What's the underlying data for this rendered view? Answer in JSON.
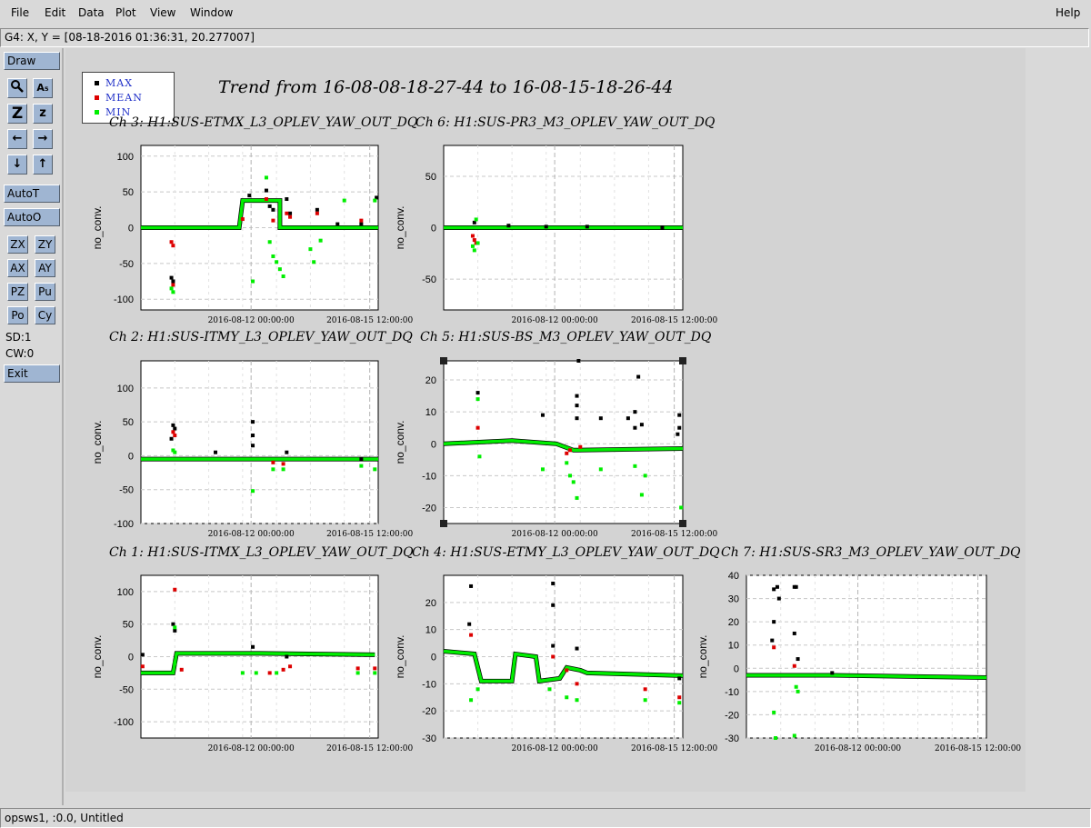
{
  "menubar": {
    "items": [
      "File",
      "Edit",
      "Data",
      "Plot",
      "View",
      "Window"
    ],
    "help": "Help"
  },
  "coord_readout": "G4: X, Y = [08-18-2016 01:36:31, 20.277007]",
  "toolbar": {
    "draw": "Draw",
    "autot": "AutoT",
    "autoo": "AutoO",
    "exit": "Exit",
    "buttons_row": [
      [
        "ZX",
        "ZY"
      ],
      [
        "AX",
        "AY"
      ],
      [
        "PZ",
        "Pu"
      ],
      [
        "Po",
        "Cy"
      ]
    ],
    "sd_label": "SD:1",
    "cw_label": "CW:0",
    "icon_labels": [
      "A₅",
      "Z",
      "z"
    ]
  },
  "legend": {
    "entries": [
      {
        "label": "MAX",
        "color": "#000000"
      },
      {
        "label": "MEAN",
        "color": "#dd0000"
      },
      {
        "label": "MIN",
        "color": "#00ee00"
      }
    ]
  },
  "trend_title": "Trend from 16-08-08-18-27-44 to 16-08-15-18-26-44",
  "ylabel": "no_conv.",
  "xtick_labels": [
    "2016-08-12 00:00:00",
    "2016-08-15 12:00:00"
  ],
  "status_text": "opsws1, :0.0, Untitled",
  "colors": {
    "max": "#000000",
    "mean": "#dd0000",
    "min": "#00ee00",
    "button": "#9fb5d2",
    "legend_text": "#2030c8"
  },
  "chart_data": [
    {
      "type": "scatter",
      "title": "Ch 3: H1:SUS-ETMX_L3_OPLEV_YAW_OUT_DQ",
      "ylabel": "no_conv.",
      "yticks": [
        100,
        50,
        0,
        -50,
        -100
      ],
      "ylim": [
        -115,
        115
      ],
      "xlim": [
        0,
        7
      ],
      "xtick_labels": [
        "2016-08-12 00:00:00",
        "2016-08-15 12:00:00"
      ],
      "xtick_pos": [
        3.25,
        6.75
      ],
      "baseline": [
        [
          0,
          0
        ],
        [
          2.9,
          0
        ],
        [
          3.0,
          38
        ],
        [
          4.1,
          38
        ],
        [
          4.1,
          0
        ],
        [
          7,
          0
        ]
      ],
      "series": [
        {
          "name": "MAX",
          "points": [
            [
              0.9,
              -70
            ],
            [
              0.95,
              -75
            ],
            [
              3.2,
              45
            ],
            [
              3.7,
              52
            ],
            [
              3.8,
              30
            ],
            [
              3.9,
              25
            ],
            [
              4.3,
              40
            ],
            [
              4.4,
              20
            ],
            [
              5.2,
              25
            ],
            [
              5.8,
              5
            ],
            [
              6.5,
              5
            ],
            [
              6.95,
              42
            ]
          ]
        },
        {
          "name": "MEAN",
          "points": [
            [
              0.9,
              -20
            ],
            [
              0.95,
              -25
            ],
            [
              0.95,
              -80
            ],
            [
              3.0,
              12
            ],
            [
              3.7,
              40
            ],
            [
              3.9,
              10
            ],
            [
              4.3,
              20
            ],
            [
              4.4,
              15
            ],
            [
              5.2,
              20
            ],
            [
              6.5,
              10
            ]
          ]
        },
        {
          "name": "MIN",
          "points": [
            [
              0.9,
              -85
            ],
            [
              0.95,
              -90
            ],
            [
              3.3,
              -75
            ],
            [
              3.7,
              70
            ],
            [
              3.8,
              -20
            ],
            [
              3.9,
              -40
            ],
            [
              4.0,
              -48
            ],
            [
              4.1,
              -58
            ],
            [
              4.2,
              -68
            ],
            [
              5.0,
              -30
            ],
            [
              5.1,
              -48
            ],
            [
              5.3,
              -18
            ],
            [
              6.0,
              38
            ],
            [
              6.9,
              38
            ]
          ]
        }
      ]
    },
    {
      "type": "scatter",
      "title": "Ch 6: H1:SUS-PR3_M3_OPLEV_YAW_OUT_DQ",
      "ylabel": "no_conv.",
      "yticks": [
        50,
        0,
        -50
      ],
      "ylim": [
        -80,
        80
      ],
      "xlim": [
        0,
        7
      ],
      "xtick_labels": [
        "2016-08-12 00:00:00",
        "2016-08-15 12:00:00"
      ],
      "xtick_pos": [
        3.25,
        6.75
      ],
      "baseline": [
        [
          0,
          0
        ],
        [
          7,
          0
        ]
      ],
      "series": [
        {
          "name": "MAX",
          "points": [
            [
              0.9,
              5
            ],
            [
              1.9,
              2
            ],
            [
              3.0,
              1
            ],
            [
              4.2,
              1
            ],
            [
              6.4,
              0
            ]
          ]
        },
        {
          "name": "MEAN",
          "points": [
            [
              0.85,
              -8
            ],
            [
              0.9,
              -12
            ],
            [
              0.95,
              -15
            ]
          ]
        },
        {
          "name": "MIN",
          "points": [
            [
              0.85,
              -18
            ],
            [
              0.9,
              -22
            ],
            [
              0.95,
              8
            ],
            [
              1.0,
              -15
            ]
          ]
        }
      ]
    },
    {
      "type": "scatter",
      "title": "Ch 2: H1:SUS-ITMY_L3_OPLEV_YAW_OUT_DQ",
      "ylabel": "no_conv.",
      "yticks": [
        100,
        50,
        0,
        -50,
        -100
      ],
      "ylim": [
        -100,
        140
      ],
      "xlim": [
        0,
        7
      ],
      "xtick_labels": [
        "2016-08-12 00:00:00",
        "2016-08-15 12:00:00"
      ],
      "xtick_pos": [
        3.25,
        6.75
      ],
      "baseline": [
        [
          0,
          -5
        ],
        [
          7,
          -5
        ]
      ],
      "series": [
        {
          "name": "MAX",
          "points": [
            [
              0.95,
              45
            ],
            [
              1.0,
              40
            ],
            [
              0.9,
              25
            ],
            [
              2.2,
              5
            ],
            [
              3.3,
              50
            ],
            [
              3.3,
              30
            ],
            [
              3.3,
              15
            ],
            [
              4.3,
              5
            ],
            [
              6.5,
              -5
            ]
          ]
        },
        {
          "name": "MEAN",
          "points": [
            [
              0.95,
              35
            ],
            [
              1.0,
              30
            ],
            [
              3.9,
              -10
            ],
            [
              4.2,
              -12
            ]
          ]
        },
        {
          "name": "MIN",
          "points": [
            [
              0.95,
              8
            ],
            [
              1.0,
              5
            ],
            [
              3.3,
              -52
            ],
            [
              3.9,
              -20
            ],
            [
              4.2,
              -20
            ],
            [
              6.5,
              -15
            ],
            [
              6.9,
              -20
            ]
          ]
        }
      ]
    },
    {
      "type": "scatter",
      "title": "Ch 5: H1:SUS-BS_M3_OPLEV_YAW_OUT_DQ",
      "ylabel": "no_conv.",
      "yticks": [
        20,
        10,
        0,
        -10,
        -20
      ],
      "ylim": [
        -25,
        26
      ],
      "xlim": [
        0,
        7
      ],
      "xtick_labels": [
        "2016-08-12 00:00:00",
        "2016-08-15 12:00:00"
      ],
      "xtick_pos": [
        3.25,
        6.75
      ],
      "baseline": [
        [
          0,
          0
        ],
        [
          2.0,
          1
        ],
        [
          3.3,
          0
        ],
        [
          3.8,
          -2
        ],
        [
          7,
          -1.5
        ]
      ],
      "series": [
        {
          "name": "MAX",
          "points": [
            [
              1.0,
              16
            ],
            [
              2.9,
              9
            ],
            [
              3.9,
              15
            ],
            [
              3.95,
              26
            ],
            [
              3.9,
              12
            ],
            [
              3.9,
              8
            ],
            [
              4.6,
              8
            ],
            [
              5.4,
              8
            ],
            [
              5.6,
              10
            ],
            [
              5.7,
              21
            ],
            [
              5.6,
              5
            ],
            [
              5.8,
              6
            ],
            [
              6.9,
              9
            ],
            [
              6.9,
              5
            ],
            [
              6.85,
              3
            ]
          ]
        },
        {
          "name": "MEAN",
          "points": [
            [
              1.0,
              5
            ],
            [
              3.6,
              -3
            ],
            [
              3.7,
              -2
            ],
            [
              4.0,
              -1
            ]
          ]
        },
        {
          "name": "MIN",
          "points": [
            [
              1.0,
              14
            ],
            [
              1.05,
              -4
            ],
            [
              2.9,
              -8
            ],
            [
              3.6,
              -6
            ],
            [
              3.7,
              -10
            ],
            [
              3.8,
              -12
            ],
            [
              3.9,
              -17
            ],
            [
              4.6,
              -8
            ],
            [
              5.6,
              -7
            ],
            [
              5.8,
              -16
            ],
            [
              5.9,
              -10
            ],
            [
              6.95,
              -20
            ]
          ]
        }
      ]
    },
    {
      "type": "scatter",
      "title": "Ch 1: H1:SUS-ITMX_L3_OPLEV_YAW_OUT_DQ",
      "ylabel": "no_conv.",
      "yticks": [
        100,
        50,
        0,
        -50,
        -100
      ],
      "ylim": [
        -125,
        125
      ],
      "xlim": [
        0,
        7
      ],
      "xtick_labels": [
        "2016-08-12 00:00:00",
        "2016-08-15 12:00:00"
      ],
      "xtick_pos": [
        3.25,
        6.75
      ],
      "baseline": [
        [
          0,
          -25
        ],
        [
          0.95,
          -25
        ],
        [
          1.05,
          5
        ],
        [
          2.8,
          5
        ],
        [
          3.5,
          5
        ],
        [
          6.9,
          3
        ]
      ],
      "series": [
        {
          "name": "MAX",
          "points": [
            [
              0.05,
              3
            ],
            [
              0.95,
              50
            ],
            [
              1.0,
              40
            ],
            [
              3.3,
              15
            ],
            [
              4.3,
              0
            ]
          ]
        },
        {
          "name": "MEAN",
          "points": [
            [
              0.05,
              -15
            ],
            [
              1.0,
              103
            ],
            [
              1.2,
              -20
            ],
            [
              3.8,
              -25
            ],
            [
              4.2,
              -20
            ],
            [
              4.4,
              -15
            ],
            [
              6.4,
              -18
            ],
            [
              6.9,
              -18
            ]
          ]
        },
        {
          "name": "MIN",
          "points": [
            [
              1.0,
              45
            ],
            [
              1.0,
              -10
            ],
            [
              3.0,
              -25
            ],
            [
              3.4,
              -25
            ],
            [
              4.0,
              -25
            ],
            [
              6.4,
              -25
            ],
            [
              6.9,
              -25
            ]
          ]
        }
      ]
    },
    {
      "type": "scatter",
      "title": "Ch 4: H1:SUS-ETMY_L3_OPLEV_YAW_OUT_DQ",
      "ylabel": "no_conv.",
      "yticks": [
        20,
        10,
        0,
        -10,
        -20,
        -30
      ],
      "ylim": [
        -30,
        30
      ],
      "xlim": [
        0,
        7
      ],
      "xtick_labels": [
        "2016-08-12 00:00:00",
        "2016-08-15 12:00:00"
      ],
      "xtick_pos": [
        3.25,
        6.75
      ],
      "baseline": [
        [
          0,
          2
        ],
        [
          0.9,
          1
        ],
        [
          1.1,
          -9
        ],
        [
          2.0,
          -9
        ],
        [
          2.1,
          1
        ],
        [
          2.7,
          0
        ],
        [
          2.8,
          -9
        ],
        [
          3.4,
          -8
        ],
        [
          3.6,
          -4
        ],
        [
          4.0,
          -5
        ],
        [
          4.2,
          -6
        ],
        [
          7,
          -7
        ]
      ],
      "series": [
        {
          "name": "MAX",
          "points": [
            [
              0.8,
              26
            ],
            [
              0.75,
              12
            ],
            [
              3.2,
              27
            ],
            [
              3.2,
              19
            ],
            [
              3.2,
              4
            ],
            [
              3.9,
              3
            ],
            [
              6.9,
              -8
            ]
          ]
        },
        {
          "name": "MEAN",
          "points": [
            [
              0.8,
              8
            ],
            [
              3.2,
              0
            ],
            [
              3.6,
              -5
            ],
            [
              3.9,
              -10
            ],
            [
              5.9,
              -12
            ],
            [
              6.9,
              -15
            ]
          ]
        },
        {
          "name": "MIN",
          "points": [
            [
              0.8,
              -16
            ],
            [
              1.0,
              -12
            ],
            [
              3.1,
              -12
            ],
            [
              3.6,
              -15
            ],
            [
              3.9,
              -16
            ],
            [
              5.9,
              -16
            ],
            [
              6.9,
              -17
            ]
          ]
        }
      ]
    },
    {
      "type": "scatter",
      "title": "Ch 7: H1:SUS-SR3_M3_OPLEV_YAW_OUT_DQ",
      "ylabel": "no_conv.",
      "yticks": [
        40,
        30,
        20,
        10,
        0,
        -10,
        -20,
        -30
      ],
      "ylim": [
        -30,
        40
      ],
      "xlim": [
        0,
        7
      ],
      "xtick_labels": [
        "2016-08-12 00:00:00",
        "2016-08-15 12:00:00"
      ],
      "xtick_pos": [
        3.25,
        6.75
      ],
      "baseline": [
        [
          0,
          -3
        ],
        [
          1.3,
          -3
        ],
        [
          2.5,
          -3
        ],
        [
          7,
          -4
        ]
      ],
      "series": [
        {
          "name": "MAX",
          "points": [
            [
              0.8,
              34
            ],
            [
              0.8,
              20
            ],
            [
              0.9,
              35
            ],
            [
              0.95,
              30
            ],
            [
              1.4,
              35
            ],
            [
              1.45,
              35
            ],
            [
              1.4,
              15
            ],
            [
              1.5,
              4
            ],
            [
              0.75,
              12
            ],
            [
              2.5,
              -2
            ]
          ]
        },
        {
          "name": "MEAN",
          "points": [
            [
              0.8,
              9
            ],
            [
              1.4,
              1
            ]
          ]
        },
        {
          "name": "MIN",
          "points": [
            [
              0.8,
              -19
            ],
            [
              0.85,
              -30
            ],
            [
              1.4,
              -29
            ],
            [
              1.45,
              -8
            ],
            [
              1.5,
              -10
            ]
          ]
        }
      ]
    }
  ]
}
